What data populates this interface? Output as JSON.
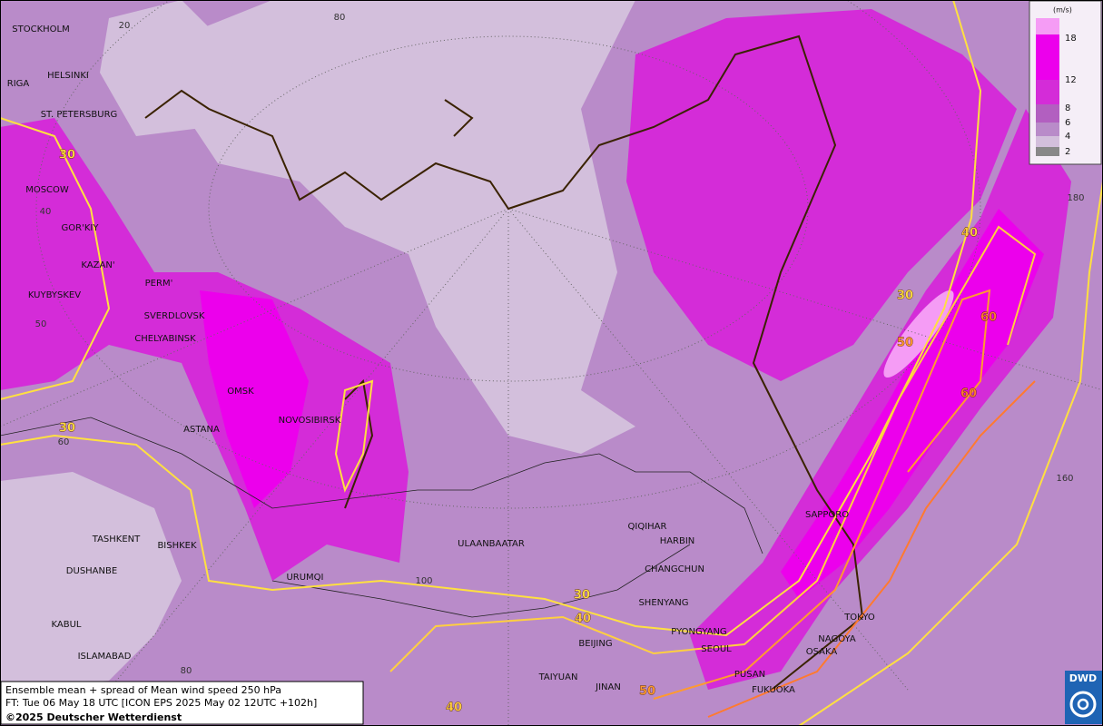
{
  "map": {
    "cities": [
      "STOCKHOLM",
      "HELSINKI",
      "RIGA",
      "ST. PETERSBURG",
      "MOSCOW",
      "GOR'KIY",
      "KAZAN'",
      "PERM'",
      "KUYBYSKEV",
      "SVERDLOVSK",
      "CHELYABINSK",
      "OMSK",
      "ASTANA",
      "NOVOSIBIRSK",
      "TASHKENT",
      "BISHKEK",
      "DUSHANBE",
      "URUMQI",
      "KABUL",
      "ISLAMABAD",
      "ULAANBAATAR",
      "QIQIHAR",
      "HARBIN",
      "CHANGCHUN",
      "SHENYANG",
      "PYONGYANG",
      "SEOUL",
      "BEIJING",
      "TAIYUAN",
      "JINAN",
      "PUSAN",
      "FUKUOKA",
      "SAPPORO",
      "TOKYO",
      "NAGOYA",
      "OSAKA"
    ],
    "contour_labels": [
      30,
      30,
      30,
      40,
      50,
      60,
      60,
      30,
      40,
      50,
      40
    ],
    "grid_labels": [
      20,
      80,
      40,
      50,
      60,
      100,
      80,
      180,
      160
    ]
  },
  "legend": {
    "unit": "(m/s)",
    "levels": [
      18,
      12,
      8,
      6,
      4,
      2
    ]
  },
  "caption": {
    "line1": "Ensemble mean + spread of Mean wind speed 250 hPa",
    "line2": "FT: Tue 06 May 18 UTC [ICON EPS 2025 May 02 12UTC +102h]",
    "line3": "©2025 Deutscher Wetterdienst"
  },
  "logo": "DWD"
}
